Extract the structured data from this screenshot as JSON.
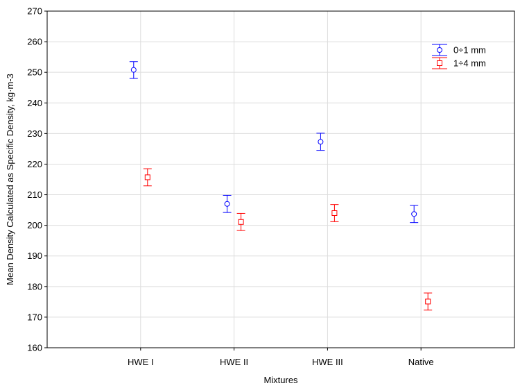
{
  "chart_data": {
    "type": "scatter",
    "title": "",
    "xlabel": "Mixtures",
    "ylabel": "Mean Density Calculated as Specific Density, kg·m-3",
    "categories": [
      "HWE I",
      "HWE II",
      "HWE III",
      "Native"
    ],
    "ylim": [
      160,
      270
    ],
    "yticks": [
      160,
      170,
      180,
      190,
      200,
      210,
      220,
      230,
      240,
      250,
      260,
      270
    ],
    "grid": true,
    "legend_position": "top-right",
    "series": [
      {
        "name": "0÷1 mm",
        "color": "#0000ff",
        "marker": "circle",
        "values": [
          250.8,
          207.0,
          227.3,
          203.7
        ],
        "lower": [
          248.0,
          204.2,
          224.5,
          200.9
        ],
        "upper": [
          253.5,
          209.8,
          230.1,
          206.5
        ]
      },
      {
        "name": "1÷4 mm",
        "color": "#ff0000",
        "marker": "square",
        "values": [
          215.7,
          201.1,
          204.0,
          175.1
        ],
        "lower": [
          212.9,
          198.3,
          201.2,
          172.3
        ],
        "upper": [
          218.5,
          203.9,
          206.8,
          177.9
        ]
      }
    ]
  }
}
